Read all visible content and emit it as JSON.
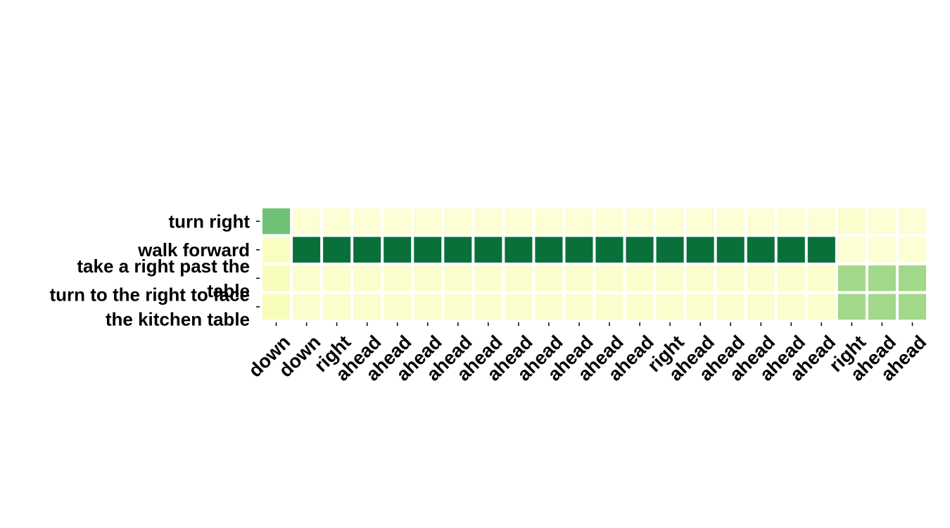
{
  "chart_data": {
    "type": "heatmap",
    "title": "",
    "xlabel": "",
    "ylabel": "",
    "colormap": "YlGn",
    "cell_gap_color": "#ffffff",
    "legend": "none",
    "rows": [
      {
        "lines": [
          "turn right"
        ]
      },
      {
        "lines": [
          "walk forward"
        ]
      },
      {
        "lines": [
          "take a right past the",
          "table"
        ]
      },
      {
        "lines": [
          "turn to the right to face",
          "the kitchen table"
        ]
      }
    ],
    "columns": [
      "down",
      "down",
      "right",
      "ahead",
      "ahead",
      "ahead",
      "ahead",
      "ahead",
      "ahead",
      "ahead",
      "ahead",
      "ahead",
      "ahead",
      "right",
      "ahead",
      "ahead",
      "ahead",
      "ahead",
      "ahead",
      "right",
      "ahead",
      "ahead"
    ],
    "values": [
      [
        0.52,
        0.05,
        0.05,
        0.05,
        0.05,
        0.05,
        0.05,
        0.05,
        0.05,
        0.05,
        0.05,
        0.05,
        0.05,
        0.05,
        0.05,
        0.05,
        0.05,
        0.05,
        0.05,
        0.07,
        0.05,
        0.05
      ],
      [
        0.1,
        0.84,
        0.84,
        0.84,
        0.84,
        0.84,
        0.84,
        0.84,
        0.84,
        0.84,
        0.84,
        0.84,
        0.84,
        0.84,
        0.84,
        0.84,
        0.84,
        0.84,
        0.84,
        0.05,
        0.05,
        0.05
      ],
      [
        0.12,
        0.07,
        0.07,
        0.07,
        0.07,
        0.07,
        0.07,
        0.07,
        0.07,
        0.07,
        0.07,
        0.07,
        0.07,
        0.07,
        0.07,
        0.07,
        0.07,
        0.07,
        0.07,
        0.4,
        0.4,
        0.4
      ],
      [
        0.12,
        0.07,
        0.07,
        0.07,
        0.07,
        0.07,
        0.07,
        0.07,
        0.07,
        0.07,
        0.07,
        0.07,
        0.07,
        0.07,
        0.07,
        0.07,
        0.07,
        0.07,
        0.07,
        0.4,
        0.4,
        0.4
      ]
    ]
  }
}
